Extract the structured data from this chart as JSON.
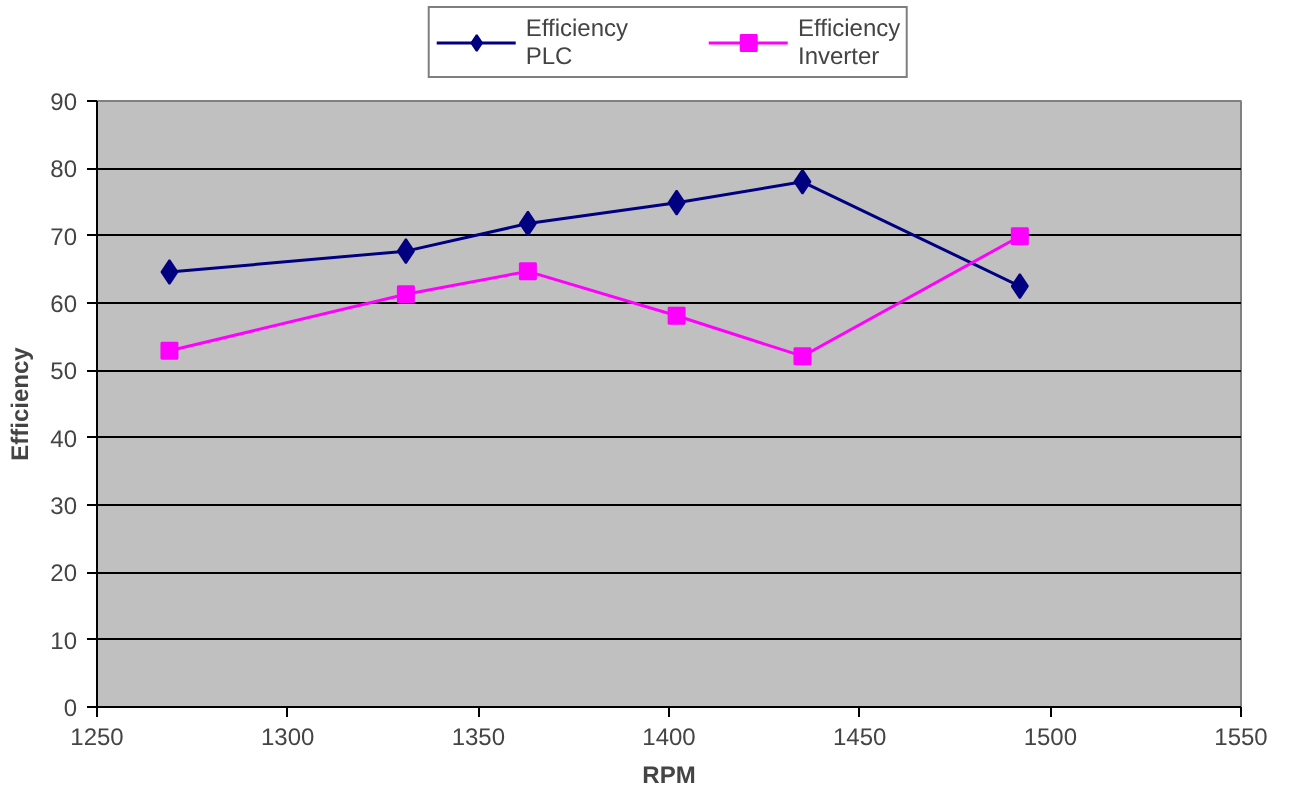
{
  "chart_data": {
    "type": "line",
    "xlabel": "RPM",
    "ylabel": "Efficiency",
    "x": [
      1269,
      1331,
      1363,
      1402,
      1435,
      1492
    ],
    "series": [
      {
        "name": "Efficiency PLC",
        "color": "#000080",
        "marker": "diamond",
        "values": [
          64.6,
          67.7,
          71.8,
          74.9,
          78,
          62.5
        ]
      },
      {
        "name": "Efficiency Inverter",
        "color": "#ff00ff",
        "marker": "square",
        "values": [
          52.9,
          61.3,
          64.7,
          58.1,
          52.1,
          69.9
        ]
      }
    ],
    "xlim": [
      1250,
      1550
    ],
    "xticks": [
      1250,
      1300,
      1350,
      1400,
      1450,
      1500,
      1550
    ],
    "ylim": [
      0,
      90
    ],
    "yticks": [
      0,
      10,
      20,
      30,
      40,
      50,
      60,
      70,
      80,
      90
    ],
    "grid": "y",
    "legend": "top",
    "line_style": "solid"
  }
}
